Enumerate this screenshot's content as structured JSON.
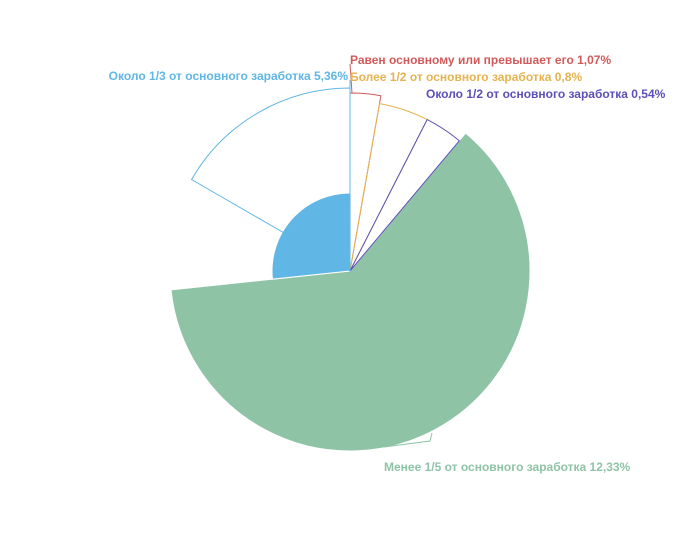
{
  "chart_data": {
    "type": "pie",
    "variant": "rose",
    "slices": [
      {
        "label": "Равен основному или превышает его 1,07%",
        "value": 1.07,
        "color": "#d05a5a",
        "style": "outline",
        "radius": 178
      },
      {
        "label": "Более 1/2 от основного заработка 0,8%",
        "value": 0.8,
        "color": "#e5b34f",
        "style": "outline",
        "radius": 170
      },
      {
        "label": "Около 1/2 от основного заработка 0,54%",
        "value": 0.54,
        "color": "#5c4fb8",
        "style": "outline",
        "radius": 170
      },
      {
        "label": "Менее 1/5 от основного заработка 12,33%",
        "value": 12.33,
        "color": "#8fc3a6",
        "style": "filled",
        "radius": 180
      },
      {
        "label": "Около 1/3 от основного заработка 5,36%",
        "value": 5.36,
        "color": "#60b6e4",
        "style": "filled",
        "radius": 78
      },
      {
        "label": "",
        "value": 0,
        "color": "#60b6e4",
        "style": "outline",
        "radius": 183,
        "outline_for": 4
      }
    ]
  }
}
